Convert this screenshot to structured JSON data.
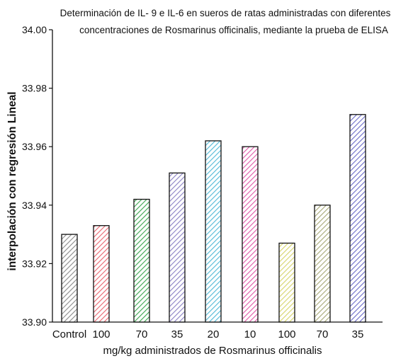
{
  "chart_data": {
    "type": "bar",
    "title_line1": "Determinación de IL- 9 e IL-6 en sueros de ratas administradas con diferentes",
    "title_line2": "concentraciones de Rosmarinus officinalis, mediante la prueba de ELISA",
    "xlabel": "mg/kg administrados de  Rosmarinus officinalis",
    "ylabel": "interpolación con regresión Lineal",
    "categories": [
      "Control",
      "100",
      "70",
      "35",
      "20",
      "10",
      "100",
      "70",
      "35"
    ],
    "values": [
      33.93,
      33.933,
      33.942,
      33.951,
      33.962,
      33.96,
      33.927,
      33.94,
      33.971
    ],
    "colors": [
      "#8a8a8a",
      "#e8646e",
      "#3aa44e",
      "#8a80c4",
      "#4fb8d6",
      "#e058a8",
      "#d6d46a",
      "#a6a876",
      "#6b6bc8"
    ],
    "ylim": [
      33.9,
      34.0
    ],
    "yticks": [
      "33.90",
      "33.92",
      "33.94",
      "33.96",
      "33.98",
      "34.00"
    ],
    "fill_pattern": "diagonal-hatch",
    "grid": false,
    "legend": "none"
  }
}
